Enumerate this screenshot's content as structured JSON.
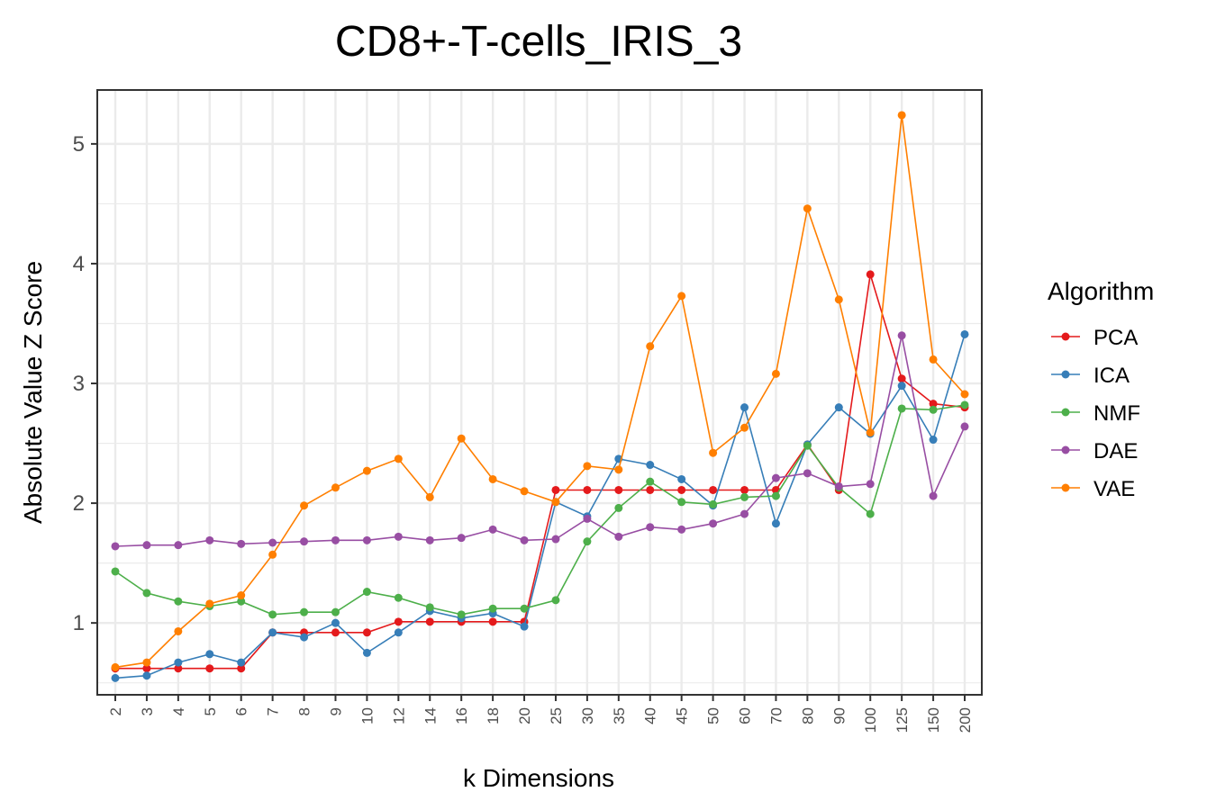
{
  "chart_data": {
    "type": "line",
    "title": "CD8+-T-cells_IRIS_3",
    "xlabel": "k Dimensions",
    "ylabel": "Absolute Value Z Score",
    "categories": [
      "2",
      "3",
      "4",
      "5",
      "6",
      "7",
      "8",
      "9",
      "10",
      "12",
      "14",
      "16",
      "18",
      "20",
      "25",
      "30",
      "35",
      "40",
      "45",
      "50",
      "60",
      "70",
      "80",
      "90",
      "100",
      "125",
      "150",
      "200"
    ],
    "ylim": [
      0.4,
      5.45
    ],
    "yticks": [
      1,
      2,
      3,
      4,
      5
    ],
    "grid": true,
    "legend_title": "Algorithm",
    "legend_position": "right",
    "series": [
      {
        "name": "PCA",
        "color": "#E41A1C",
        "values": [
          0.62,
          0.62,
          0.62,
          0.62,
          0.62,
          0.92,
          0.92,
          0.92,
          0.92,
          1.01,
          1.01,
          1.01,
          1.01,
          1.01,
          2.11,
          2.11,
          2.11,
          2.11,
          2.11,
          2.11,
          2.11,
          2.11,
          2.49,
          2.11,
          3.91,
          3.04,
          2.83,
          2.8
        ]
      },
      {
        "name": "ICA",
        "color": "#377EB8",
        "values": [
          0.54,
          0.56,
          0.67,
          0.74,
          0.67,
          0.92,
          0.88,
          1.0,
          0.75,
          0.92,
          1.1,
          1.04,
          1.08,
          0.97,
          2.01,
          1.89,
          2.37,
          2.32,
          2.2,
          1.98,
          2.8,
          1.83,
          2.49,
          2.8,
          2.58,
          2.98,
          2.53,
          3.41
        ]
      },
      {
        "name": "NMF",
        "color": "#4DAF4A",
        "values": [
          1.43,
          1.25,
          1.18,
          1.14,
          1.18,
          1.07,
          1.09,
          1.09,
          1.26,
          1.21,
          1.13,
          1.07,
          1.12,
          1.12,
          1.19,
          1.68,
          1.96,
          2.18,
          2.01,
          1.99,
          2.05,
          2.06,
          2.48,
          2.13,
          1.91,
          2.79,
          2.78,
          2.82
        ]
      },
      {
        "name": "DAE",
        "color": "#984EA3",
        "values": [
          1.64,
          1.65,
          1.65,
          1.69,
          1.66,
          1.67,
          1.68,
          1.69,
          1.69,
          1.72,
          1.69,
          1.71,
          1.78,
          1.69,
          1.7,
          1.87,
          1.72,
          1.8,
          1.78,
          1.83,
          1.91,
          2.21,
          2.25,
          2.14,
          2.16,
          3.4,
          2.06,
          2.64
        ]
      },
      {
        "name": "VAE",
        "color": "#FF7F00",
        "values": [
          0.63,
          0.67,
          0.93,
          1.16,
          1.23,
          1.57,
          1.98,
          2.13,
          2.27,
          2.37,
          2.05,
          2.54,
          2.2,
          2.1,
          2.01,
          2.31,
          2.28,
          3.31,
          3.73,
          2.42,
          2.63,
          3.08,
          4.46,
          3.7,
          2.59,
          5.24,
          3.2,
          2.91
        ]
      }
    ]
  }
}
